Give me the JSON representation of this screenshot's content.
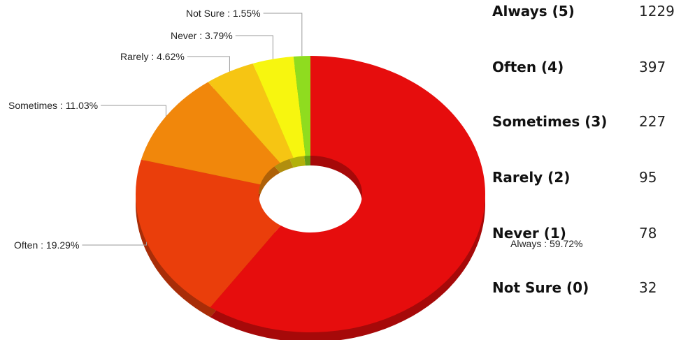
{
  "chart_data": {
    "type": "pie",
    "donut": true,
    "title": "",
    "slices": [
      {
        "name": "Always",
        "label": "Always : 59.72%",
        "value": 59.72,
        "color": "#e60d0d"
      },
      {
        "name": "Often",
        "label": "Often : 19.29%",
        "value": 19.29,
        "color": "#ea3e0b"
      },
      {
        "name": "Sometimes",
        "label": "Sometimes : 11.03%",
        "value": 11.03,
        "color": "#f1870b"
      },
      {
        "name": "Rarely",
        "label": "Rarely : 4.62%",
        "value": 4.62,
        "color": "#f6c513"
      },
      {
        "name": "Never",
        "label": "Never : 3.79%",
        "value": 3.79,
        "color": "#f7f60f"
      },
      {
        "name": "Not Sure",
        "label": "Not Sure : 1.55%",
        "value": 1.55,
        "color": "#8fdc1f"
      }
    ]
  },
  "table": {
    "rows": [
      {
        "category": "Always (5)",
        "count": "1229"
      },
      {
        "category": "Often (4)",
        "count": "397"
      },
      {
        "category": "Sometimes (3)",
        "count": "227"
      },
      {
        "category": "Rarely (2)",
        "count": "95"
      },
      {
        "category": "Never (1)",
        "count": "78"
      },
      {
        "category": "Not Sure (0)",
        "count": "32"
      }
    ]
  }
}
